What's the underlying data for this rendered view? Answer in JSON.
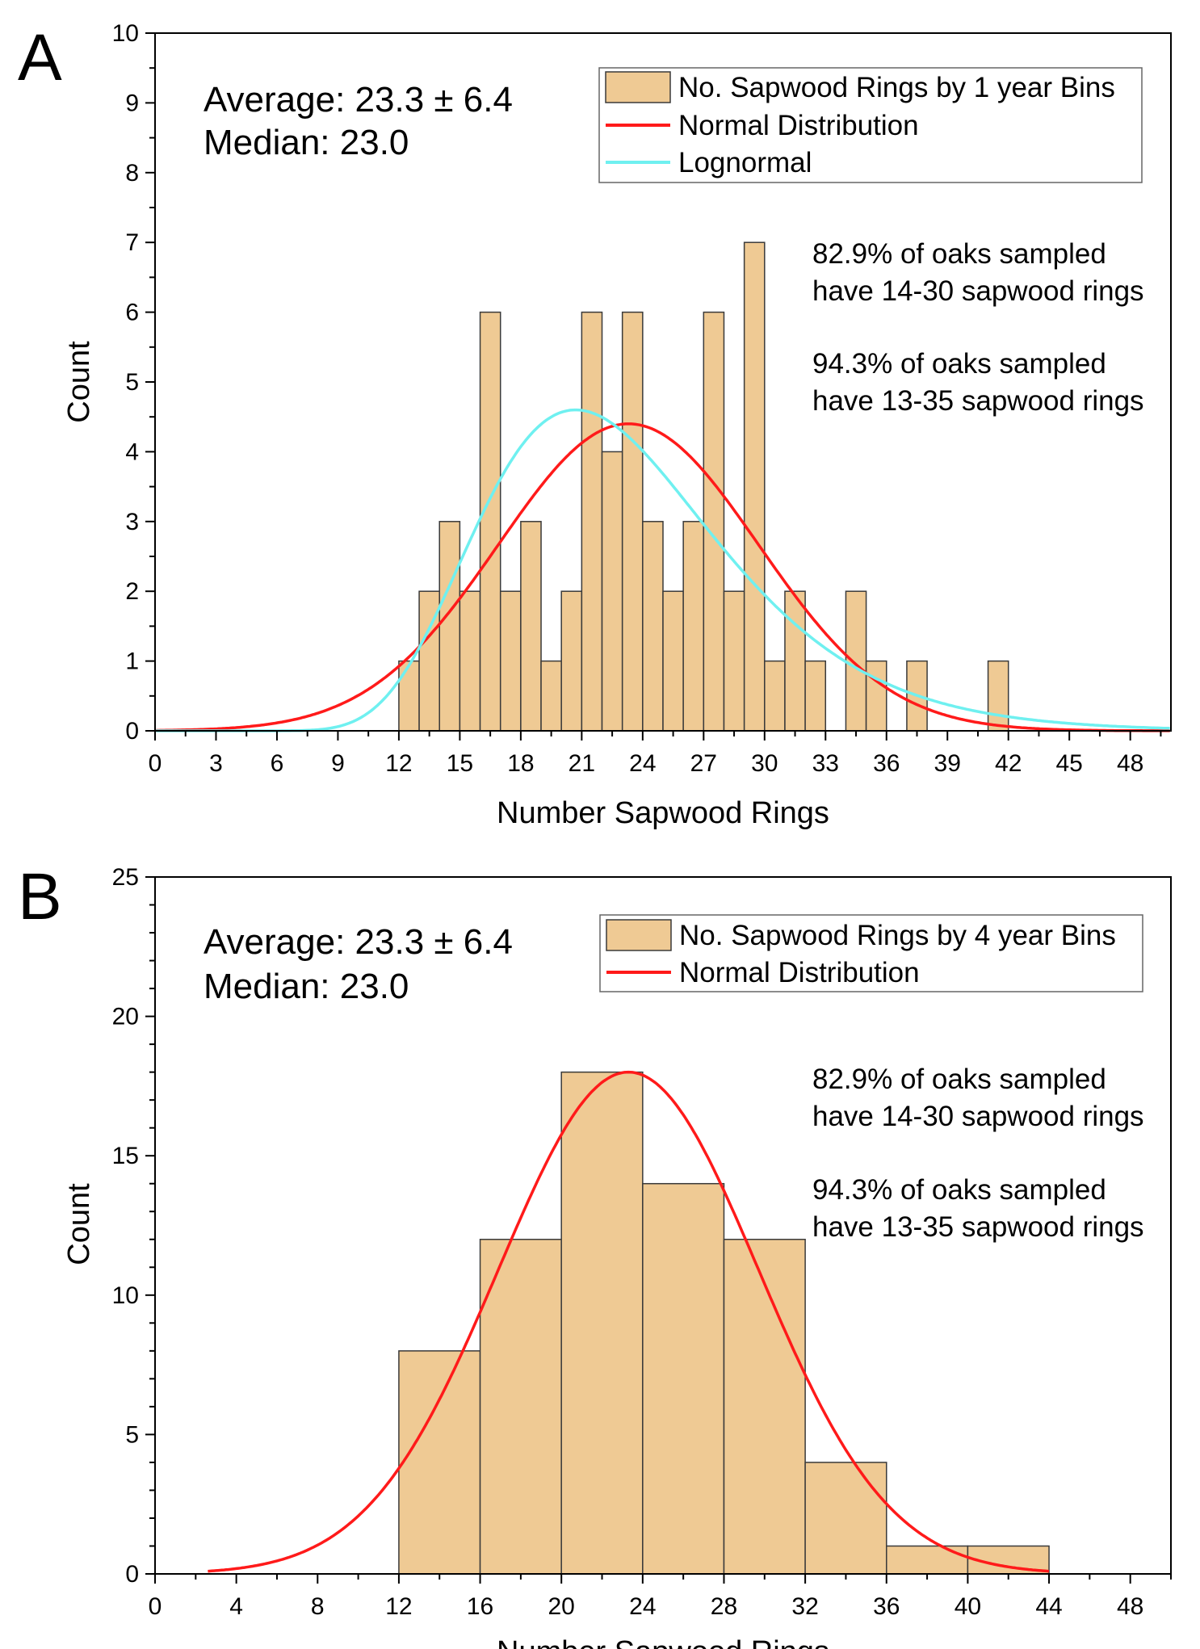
{
  "colors": {
    "bar": "#EFCA94",
    "bar_edge": "#3a3a3a",
    "normal": "#FF1A1A",
    "lognormal": "#6FF0F0"
  },
  "chart_data": [
    {
      "panel": "A",
      "type": "bar",
      "title": "",
      "xlabel": "Number Sapwood Rings",
      "ylabel": "Count",
      "xlim": [
        0,
        50
      ],
      "ylim": [
        0,
        10
      ],
      "xticks": [
        0,
        3,
        6,
        9,
        12,
        15,
        18,
        21,
        24,
        27,
        30,
        33,
        36,
        39,
        42,
        45,
        48
      ],
      "yticks": [
        0,
        1,
        2,
        3,
        4,
        5,
        6,
        7,
        8,
        9,
        10
      ],
      "bin_width": 1,
      "bin_starts": [
        12,
        13,
        14,
        15,
        16,
        17,
        18,
        19,
        20,
        21,
        22,
        23,
        24,
        25,
        26,
        27,
        28,
        29,
        30,
        31,
        32,
        33,
        34,
        35,
        36,
        37,
        38,
        39,
        40,
        41
      ],
      "values": [
        1,
        2,
        3,
        2,
        6,
        2,
        3,
        1,
        2,
        6,
        4,
        6,
        3,
        2,
        3,
        6,
        2,
        7,
        1,
        2,
        1,
        0,
        2,
        1,
        0,
        1,
        0,
        0,
        0,
        1
      ],
      "curves": [
        {
          "name": "Normal Distribution",
          "kind": "normal",
          "mean": 23.3,
          "sd": 6.4,
          "peak": 4.4
        },
        {
          "name": "Lognormal",
          "kind": "lognormal",
          "mode": 20.7,
          "peak": 4.6
        }
      ],
      "legend": {
        "placement": "top-right",
        "entries": [
          "No. Sapwood Rings by 1 year Bins",
          "Normal Distribution",
          "Lognormal"
        ]
      },
      "stats": [
        "Average: 23.3 ± 6.4",
        "Median: 23.0"
      ],
      "annotations": [
        "82.9% of oaks sampled",
        "have 14-30 sapwood rings",
        "94.3% of oaks sampled",
        "have 13-35 sapwood rings"
      ]
    },
    {
      "panel": "B",
      "type": "bar",
      "title": "",
      "xlabel": "Number Sapwood Rings",
      "ylabel": "Count",
      "xlim": [
        0,
        50
      ],
      "ylim": [
        0,
        25
      ],
      "xticks": [
        0,
        4,
        8,
        12,
        16,
        20,
        24,
        28,
        32,
        36,
        40,
        44,
        48
      ],
      "yticks": [
        0,
        5,
        10,
        15,
        20,
        25
      ],
      "bin_width": 4,
      "bin_starts": [
        12,
        16,
        20,
        24,
        28,
        32,
        36,
        40
      ],
      "values": [
        8,
        12,
        18,
        14,
        12,
        4,
        1,
        1
      ],
      "curves": [
        {
          "name": "Normal Distribution",
          "kind": "normal",
          "mean": 23.3,
          "sd": 6.4,
          "peak": 18
        }
      ],
      "legend": {
        "placement": "top-right",
        "entries": [
          "No. Sapwood Rings by 4 year Bins",
          "Normal Distribution"
        ]
      },
      "stats": [
        "Average: 23.3 ± 6.4",
        "Median: 23.0"
      ],
      "annotations": [
        "82.9% of oaks sampled",
        "have 14-30 sapwood rings",
        "94.3% of oaks sampled",
        "have 13-35 sapwood rings"
      ]
    }
  ]
}
